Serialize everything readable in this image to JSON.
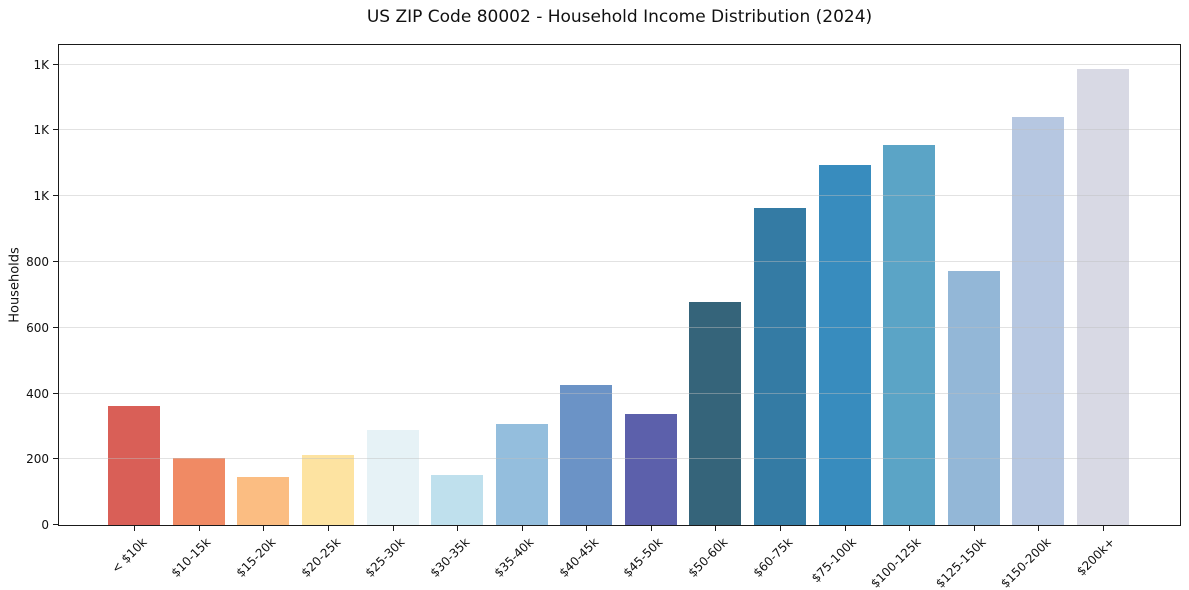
{
  "chart_data": {
    "type": "bar",
    "title": "US ZIP Code 80002 - Household Income Distribution (2024)",
    "xlabel": "",
    "ylabel": "Households",
    "categories": [
      "< $10k",
      "$10-15k",
      "$15-20k",
      "$20-25k",
      "$25-30k",
      "$30-35k",
      "$35-40k",
      "$40-45k",
      "$45-50k",
      "$50-60k",
      "$60-75k",
      "$75-100k",
      "$100-125k",
      "$125-150k",
      "$150-200k",
      "$200k+"
    ],
    "values": [
      362,
      204,
      146,
      213,
      289,
      152,
      306,
      427,
      338,
      677,
      963,
      1094,
      1155,
      774,
      1240,
      1387
    ],
    "bar_colors": [
      "#d95f57",
      "#f08a64",
      "#fbbd82",
      "#fde3a1",
      "#e6f2f6",
      "#bfe0ed",
      "#94bedd",
      "#6b93c6",
      "#5c60ab",
      "#35647a",
      "#347ba4",
      "#388cbe",
      "#5ba4c6",
      "#93b7d7",
      "#b6c7e1",
      "#d8d9e4"
    ],
    "ylim": [
      0,
      1460
    ],
    "ytick_values": [
      0,
      200,
      400,
      600,
      800,
      1000,
      1200,
      1400
    ],
    "ytick_labels": [
      "0",
      "200",
      "400",
      "600",
      "800",
      "1K",
      "1K",
      "1K"
    ],
    "grid": "horizontal",
    "legend": "none",
    "background_color": "#ffffff",
    "grid_color": "#e3e3e3",
    "spine_color": "#1a1a1a"
  }
}
